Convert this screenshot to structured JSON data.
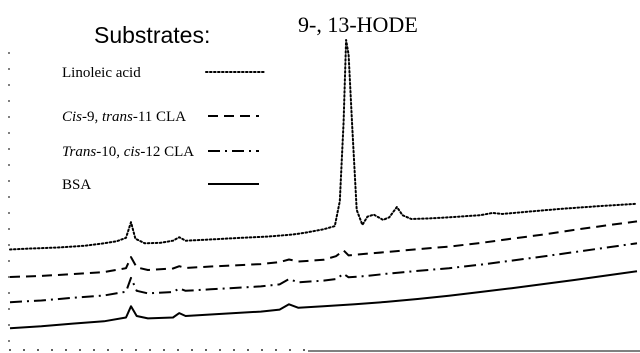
{
  "chart_data": {
    "type": "line",
    "grid": false,
    "legend_title": "Substrates:",
    "peak_label": "9-, 13-HODE",
    "legend_position": "top-left",
    "x_range": [
      0,
      100
    ],
    "y_range": [
      0,
      100
    ],
    "series": [
      {
        "legend_parts": [
          {
            "text": "Linoleic acid",
            "italic": false
          }
        ],
        "line_style": "dotted",
        "color": "#000000",
        "points": [
          [
            0,
            28.5
          ],
          [
            3,
            28.8
          ],
          [
            8,
            29.2
          ],
          [
            12,
            29.8
          ],
          [
            15,
            30.6
          ],
          [
            17,
            31.3
          ],
          [
            18.5,
            32.5
          ],
          [
            19.3,
            37.8
          ],
          [
            20,
            32.2
          ],
          [
            21.5,
            30.6
          ],
          [
            24,
            30.8
          ],
          [
            26,
            31.5
          ],
          [
            27,
            32.7
          ],
          [
            28,
            31.5
          ],
          [
            31,
            31.8
          ],
          [
            36,
            32.4
          ],
          [
            41,
            32.9
          ],
          [
            45,
            33.6
          ],
          [
            47,
            34.2
          ],
          [
            50,
            35.4
          ],
          [
            51.8,
            36.5
          ],
          [
            52.6,
            45
          ],
          [
            53.2,
            72
          ],
          [
            53.6,
            100
          ],
          [
            54,
            95
          ],
          [
            54.6,
            70
          ],
          [
            55.3,
            42
          ],
          [
            56.2,
            36.9
          ],
          [
            57,
            39.7
          ],
          [
            58,
            40.4
          ],
          [
            59.5,
            38.6
          ],
          [
            60.5,
            39.5
          ],
          [
            61.7,
            43
          ],
          [
            62.6,
            40.2
          ],
          [
            64,
            38.9
          ],
          [
            67,
            39.1
          ],
          [
            70,
            39.5
          ],
          [
            75,
            40.2
          ],
          [
            77,
            41
          ],
          [
            78.5,
            40.6
          ],
          [
            82,
            41.3
          ],
          [
            88,
            42.4
          ],
          [
            94,
            43.3
          ],
          [
            100,
            44.1
          ]
        ]
      },
      {
        "legend_parts": [
          {
            "text": "Cis",
            "italic": true
          },
          {
            "text": "-9, ",
            "italic": false
          },
          {
            "text": "trans",
            "italic": true
          },
          {
            "text": "-11 CLA",
            "italic": false
          }
        ],
        "line_style": "dashed",
        "color": "#000000",
        "points": [
          [
            0,
            19.1
          ],
          [
            5,
            19.5
          ],
          [
            10,
            20.1
          ],
          [
            15,
            20.8
          ],
          [
            18.5,
            22.1
          ],
          [
            19.3,
            25.9
          ],
          [
            20.2,
            22.4
          ],
          [
            22,
            21.5
          ],
          [
            26,
            22
          ],
          [
            27,
            22.8
          ],
          [
            28,
            22.2
          ],
          [
            32,
            22.7
          ],
          [
            40,
            23.5
          ],
          [
            43,
            24.2
          ],
          [
            44.5,
            25.1
          ],
          [
            46,
            24.4
          ],
          [
            50,
            25
          ],
          [
            52,
            26.2
          ],
          [
            53.2,
            28.2
          ],
          [
            54,
            26.5
          ],
          [
            57,
            27.1
          ],
          [
            60,
            27.6
          ],
          [
            65,
            28.6
          ],
          [
            70,
            29.5
          ],
          [
            75,
            30.7
          ],
          [
            80,
            32.2
          ],
          [
            85,
            33.6
          ],
          [
            90,
            35.2
          ],
          [
            95,
            36.7
          ],
          [
            100,
            38.1
          ]
        ]
      },
      {
        "legend_parts": [
          {
            "text": "Trans",
            "italic": true
          },
          {
            "text": "-10, ",
            "italic": false
          },
          {
            "text": "cis",
            "italic": true
          },
          {
            "text": "-12 CLA",
            "italic": false
          }
        ],
        "line_style": "dash-dot",
        "color": "#000000",
        "points": [
          [
            0,
            10.5
          ],
          [
            5,
            11.1
          ],
          [
            10,
            12
          ],
          [
            15,
            12.8
          ],
          [
            18.5,
            14.1
          ],
          [
            19.3,
            18.8
          ],
          [
            20.2,
            14.4
          ],
          [
            22,
            13.5
          ],
          [
            26,
            14
          ],
          [
            27,
            15.2
          ],
          [
            28,
            14.4
          ],
          [
            32,
            14.9
          ],
          [
            40,
            15.9
          ],
          [
            43,
            16.6
          ],
          [
            44.5,
            18.4
          ],
          [
            46,
            17.3
          ],
          [
            50,
            17.9
          ],
          [
            52,
            18.4
          ],
          [
            53.2,
            20.2
          ],
          [
            54,
            19
          ],
          [
            57,
            19.5
          ],
          [
            60,
            20.2
          ],
          [
            65,
            21.2
          ],
          [
            70,
            22.1
          ],
          [
            75,
            23.3
          ],
          [
            80,
            24.7
          ],
          [
            85,
            26.1
          ],
          [
            90,
            27.6
          ],
          [
            95,
            29.1
          ],
          [
            100,
            30.6
          ]
        ]
      },
      {
        "legend_parts": [
          {
            "text": "BSA",
            "italic": false
          }
        ],
        "line_style": "solid",
        "color": "#000000",
        "points": [
          [
            0,
            1.6
          ],
          [
            5,
            2.3
          ],
          [
            10,
            3.2
          ],
          [
            15,
            4
          ],
          [
            18.5,
            5.3
          ],
          [
            19.3,
            9.1
          ],
          [
            20.2,
            5.8
          ],
          [
            22,
            5
          ],
          [
            26,
            5.3
          ],
          [
            27,
            6.8
          ],
          [
            28,
            5.8
          ],
          [
            32,
            6.3
          ],
          [
            40,
            7.3
          ],
          [
            43,
            8
          ],
          [
            44.5,
            9.8
          ],
          [
            46,
            8.6
          ],
          [
            50,
            9.1
          ],
          [
            55,
            9.8
          ],
          [
            60,
            10.6
          ],
          [
            65,
            11.6
          ],
          [
            70,
            12.7
          ],
          [
            75,
            14
          ],
          [
            80,
            15.3
          ],
          [
            85,
            16.7
          ],
          [
            90,
            18.1
          ],
          [
            95,
            19.6
          ],
          [
            100,
            21.1
          ]
        ]
      }
    ]
  }
}
